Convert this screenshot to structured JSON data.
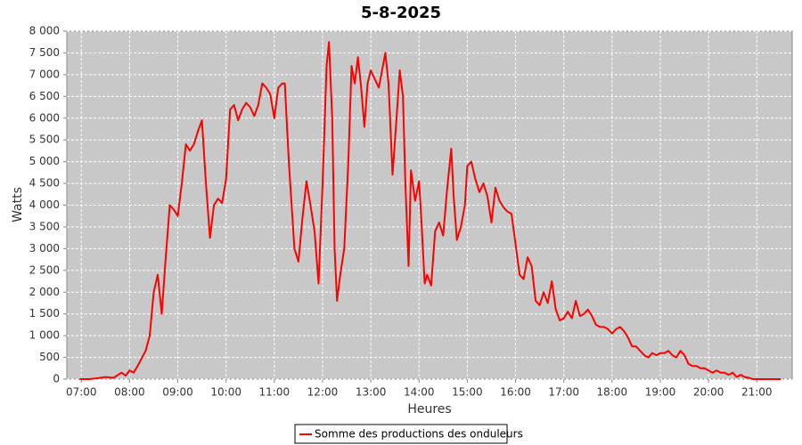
{
  "chart_data": {
    "type": "line",
    "title": "5-8-2025",
    "x_label": "Heures",
    "y_label": "Watts",
    "x": [
      "06:58",
      "07:10",
      "07:20",
      "07:30",
      "07:40",
      "07:50",
      "07:55",
      "08:00",
      "08:05",
      "08:10",
      "08:20",
      "08:25",
      "08:30",
      "08:35",
      "08:40",
      "08:45",
      "08:50",
      "08:55",
      "09:00",
      "09:05",
      "09:10",
      "09:15",
      "09:20",
      "09:25",
      "09:30",
      "09:35",
      "09:40",
      "09:45",
      "09:50",
      "09:55",
      "10:00",
      "10:05",
      "10:10",
      "10:15",
      "10:20",
      "10:25",
      "10:30",
      "10:35",
      "10:40",
      "10:45",
      "10:50",
      "10:55",
      "11:00",
      "11:05",
      "11:10",
      "11:13",
      "11:18",
      "11:25",
      "11:30",
      "11:35",
      "11:40",
      "11:45",
      "11:50",
      "11:55",
      "12:00",
      "12:05",
      "12:08",
      "12:12",
      "12:15",
      "12:18",
      "12:22",
      "12:27",
      "12:32",
      "12:36",
      "12:40",
      "12:44",
      "12:48",
      "12:52",
      "12:56",
      "13:00",
      "13:05",
      "13:10",
      "13:15",
      "13:18",
      "13:22",
      "13:27",
      "13:32",
      "13:36",
      "13:40",
      "13:43",
      "13:47",
      "13:50",
      "13:55",
      "14:00",
      "14:03",
      "14:07",
      "14:10",
      "14:15",
      "14:20",
      "14:25",
      "14:30",
      "14:35",
      "14:40",
      "14:43",
      "14:47",
      "14:52",
      "14:57",
      "15:00",
      "15:05",
      "15:10",
      "15:15",
      "15:20",
      "15:25",
      "15:30",
      "15:35",
      "15:40",
      "15:45",
      "15:50",
      "15:55",
      "16:00",
      "16:05",
      "16:10",
      "16:15",
      "16:20",
      "16:25",
      "16:30",
      "16:35",
      "16:40",
      "16:45",
      "16:50",
      "16:55",
      "17:00",
      "17:05",
      "17:10",
      "17:15",
      "17:20",
      "17:25",
      "17:30",
      "17:35",
      "17:40",
      "17:45",
      "17:50",
      "17:55",
      "18:00",
      "18:05",
      "18:10",
      "18:15",
      "18:20",
      "18:25",
      "18:30",
      "18:35",
      "18:40",
      "18:45",
      "18:50",
      "18:55",
      "19:00",
      "19:05",
      "19:10",
      "19:15",
      "19:20",
      "19:25",
      "19:30",
      "19:35",
      "19:40",
      "19:45",
      "19:50",
      "19:55",
      "20:00",
      "20:05",
      "20:10",
      "20:15",
      "20:20",
      "20:25",
      "20:30",
      "20:35",
      "20:40",
      "20:45",
      "20:50",
      "20:55",
      "21:00",
      "21:30"
    ],
    "series": [
      {
        "name": "Somme des productions des onduleurs",
        "color": "#ff0000",
        "values": [
          0,
          0,
          20,
          50,
          30,
          150,
          80,
          200,
          150,
          300,
          650,
          1000,
          2000,
          2400,
          1500,
          2800,
          4000,
          3900,
          3750,
          4500,
          5400,
          5250,
          5400,
          5700,
          5950,
          4500,
          3250,
          4000,
          4150,
          4050,
          4600,
          6200,
          6300,
          5950,
          6200,
          6350,
          6250,
          6050,
          6300,
          6800,
          6700,
          6550,
          6000,
          6700,
          6800,
          6800,
          5000,
          3000,
          2700,
          3700,
          4550,
          4000,
          3400,
          2200,
          4500,
          7200,
          7750,
          6000,
          3000,
          1800,
          2400,
          3000,
          5000,
          7200,
          6800,
          7400,
          6700,
          5800,
          6800,
          7100,
          6900,
          6700,
          7200,
          7500,
          6800,
          4700,
          6000,
          7100,
          6500,
          4500,
          2600,
          4800,
          4100,
          4550,
          3600,
          2200,
          2400,
          2150,
          3400,
          3600,
          3300,
          4400,
          5300,
          4200,
          3200,
          3500,
          4000,
          4900,
          5000,
          4600,
          4300,
          4500,
          4200,
          3600,
          4400,
          4100,
          3950,
          3850,
          3800,
          3100,
          2400,
          2300,
          2800,
          2600,
          1800,
          1700,
          2000,
          1750,
          2250,
          1600,
          1350,
          1400,
          1550,
          1400,
          1800,
          1450,
          1500,
          1600,
          1450,
          1250,
          1200,
          1200,
          1150,
          1050,
          1150,
          1200,
          1100,
          950,
          750,
          750,
          650,
          550,
          500,
          600,
          550,
          600,
          600,
          650,
          550,
          500,
          650,
          550,
          350,
          300,
          300,
          250,
          250,
          200,
          150,
          200,
          150,
          150,
          100,
          150,
          50,
          100,
          50,
          30,
          0,
          0,
          0
        ]
      }
    ],
    "xlim": [
      "06:42",
      "21:44"
    ],
    "xticks": [
      "07:00",
      "08:00",
      "09:00",
      "10:00",
      "11:00",
      "12:00",
      "13:00",
      "14:00",
      "15:00",
      "16:00",
      "17:00",
      "18:00",
      "19:00",
      "20:00",
      "21:00"
    ],
    "ylim": [
      0,
      8000
    ],
    "yticks": [
      0,
      500,
      {
        "value": 1000,
        "label": "1 000"
      },
      {
        "value": 1500,
        "label": "1 500"
      },
      {
        "value": 2000,
        "label": "2 000"
      },
      {
        "value": 2500,
        "label": "2 500"
      },
      {
        "value": 3000,
        "label": "3 000"
      },
      {
        "value": 3500,
        "label": "3 500"
      },
      {
        "value": 4000,
        "label": "4 000"
      },
      {
        "value": 4500,
        "label": "4 500"
      },
      {
        "value": 5000,
        "label": "5 000"
      },
      {
        "value": 5500,
        "label": "5 500"
      },
      {
        "value": 6000,
        "label": "6 000"
      },
      {
        "value": 6500,
        "label": "6 500"
      },
      {
        "value": 7000,
        "label": "7 000"
      },
      {
        "value": 7500,
        "label": "7 500"
      },
      {
        "value": 8000,
        "label": "8 000"
      }
    ],
    "grid": true,
    "legend": "bottom"
  }
}
